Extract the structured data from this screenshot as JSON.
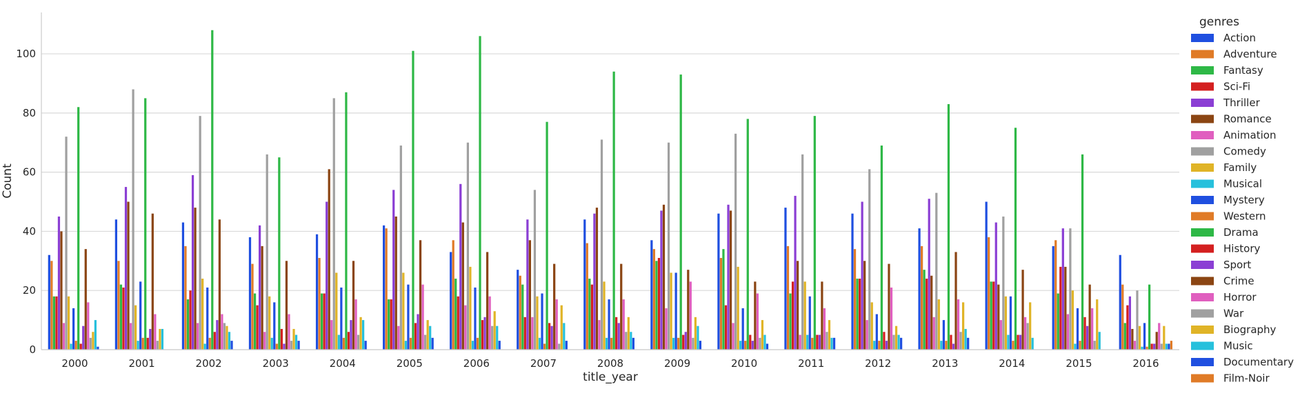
{
  "chart_data": {
    "type": "bar",
    "title": "",
    "xlabel": "title_year",
    "ylabel": "Count",
    "ylim": [
      0,
      114
    ],
    "yticks": [
      0,
      20,
      40,
      60,
      80,
      100
    ],
    "grid": "horizontal",
    "legend_position": "right",
    "legend_title": "genres",
    "categories": [
      "2000",
      "2001",
      "2002",
      "2003",
      "2004",
      "2005",
      "2006",
      "2007",
      "2008",
      "2009",
      "2010",
      "2011",
      "2012",
      "2013",
      "2014",
      "2015",
      "2016"
    ],
    "series": [
      {
        "name": "Action",
        "color": "#1f4fe0",
        "values": [
          32,
          44,
          43,
          38,
          39,
          42,
          33,
          27,
          44,
          37,
          46,
          48,
          46,
          41,
          50,
          35,
          32
        ]
      },
      {
        "name": "Adventure",
        "color": "#e07b27",
        "values": [
          30,
          30,
          35,
          29,
          31,
          41,
          37,
          25,
          36,
          34,
          31,
          35,
          34,
          35,
          38,
          37,
          22
        ]
      },
      {
        "name": "Fantasy",
        "color": "#2eb846",
        "values": [
          18,
          22,
          17,
          19,
          19,
          17,
          24,
          22,
          24,
          30,
          34,
          19,
          24,
          27,
          23,
          19,
          9
        ]
      },
      {
        "name": "Sci-Fi",
        "color": "#d42020",
        "values": [
          18,
          21,
          20,
          15,
          19,
          17,
          18,
          11,
          22,
          31,
          15,
          23,
          24,
          24,
          23,
          28,
          15
        ]
      },
      {
        "name": "Thriller",
        "color": "#8b3fd4",
        "values": [
          45,
          55,
          59,
          42,
          50,
          54,
          56,
          44,
          46,
          47,
          49,
          52,
          50,
          51,
          43,
          41,
          18
        ]
      },
      {
        "name": "Romance",
        "color": "#8b4513",
        "values": [
          40,
          50,
          48,
          35,
          61,
          45,
          43,
          37,
          48,
          49,
          47,
          30,
          30,
          25,
          22,
          28,
          7
        ]
      },
      {
        "name": "Animation",
        "color": "#e05fbf",
        "values": [
          9,
          9,
          9,
          6,
          10,
          8,
          15,
          11,
          10,
          14,
          9,
          5,
          10,
          11,
          10,
          12,
          3
        ]
      },
      {
        "name": "Comedy",
        "color": "#a0a0a0",
        "values": [
          72,
          88,
          79,
          66,
          85,
          69,
          70,
          54,
          71,
          70,
          73,
          66,
          61,
          53,
          45,
          41,
          20
        ]
      },
      {
        "name": "Family",
        "color": "#e0b427",
        "values": [
          18,
          15,
          24,
          18,
          26,
          26,
          28,
          18,
          23,
          26,
          28,
          23,
          16,
          17,
          18,
          20,
          8
        ]
      },
      {
        "name": "Musical",
        "color": "#27c0dc",
        "values": [
          2,
          3,
          2,
          4,
          5,
          3,
          3,
          4,
          4,
          4,
          3,
          5,
          3,
          3,
          5,
          2,
          1
        ]
      },
      {
        "name": "Mystery",
        "color": "#1f4fe0",
        "values": [
          14,
          23,
          21,
          16,
          21,
          22,
          21,
          19,
          17,
          26,
          14,
          18,
          12,
          10,
          18,
          14,
          9
        ]
      },
      {
        "name": "Western",
        "color": "#e07b27",
        "values": [
          3,
          4,
          4,
          2,
          4,
          4,
          4,
          2,
          4,
          4,
          3,
          4,
          3,
          3,
          3,
          3,
          1
        ]
      },
      {
        "name": "Drama",
        "color": "#2eb846",
        "values": [
          82,
          85,
          108,
          65,
          87,
          101,
          106,
          77,
          94,
          93,
          78,
          79,
          69,
          83,
          75,
          66,
          22
        ]
      },
      {
        "name": "History",
        "color": "#d42020",
        "values": [
          2,
          4,
          6,
          7,
          6,
          9,
          10,
          9,
          11,
          5,
          5,
          5,
          6,
          5,
          5,
          11,
          2
        ]
      },
      {
        "name": "Sport",
        "color": "#8b3fd4",
        "values": [
          8,
          7,
          10,
          2,
          10,
          12,
          11,
          8,
          9,
          6,
          3,
          5,
          3,
          2,
          5,
          8,
          2
        ]
      },
      {
        "name": "Crime",
        "color": "#8b4513",
        "values": [
          34,
          46,
          44,
          30,
          30,
          37,
          33,
          29,
          29,
          27,
          23,
          23,
          29,
          33,
          27,
          22,
          6
        ]
      },
      {
        "name": "Horror",
        "color": "#e05fbf",
        "values": [
          16,
          12,
          12,
          12,
          17,
          22,
          18,
          17,
          17,
          23,
          19,
          14,
          21,
          17,
          11,
          14,
          9
        ]
      },
      {
        "name": "War",
        "color": "#a0a0a0",
        "values": [
          4,
          3,
          9,
          3,
          5,
          5,
          8,
          2,
          6,
          4,
          4,
          6,
          5,
          6,
          9,
          3,
          2
        ]
      },
      {
        "name": "Biography",
        "color": "#e0b427",
        "values": [
          6,
          7,
          8,
          7,
          11,
          10,
          13,
          15,
          11,
          11,
          10,
          10,
          8,
          16,
          16,
          17,
          8
        ]
      },
      {
        "name": "Music",
        "color": "#27c0dc",
        "values": [
          10,
          7,
          6,
          5,
          10,
          8,
          8,
          9,
          6,
          8,
          5,
          4,
          5,
          7,
          4,
          6,
          2
        ]
      },
      {
        "name": "Documentary",
        "color": "#1f4fe0",
        "values": [
          1,
          0,
          3,
          3,
          3,
          4,
          3,
          3,
          4,
          3,
          2,
          4,
          4,
          4,
          0,
          0,
          2
        ]
      },
      {
        "name": "Film-Noir",
        "color": "#e07b27",
        "values": [
          0,
          0,
          0,
          0,
          0,
          0,
          0,
          0,
          0,
          0,
          0,
          0,
          0,
          0,
          0,
          0,
          3
        ]
      }
    ]
  }
}
